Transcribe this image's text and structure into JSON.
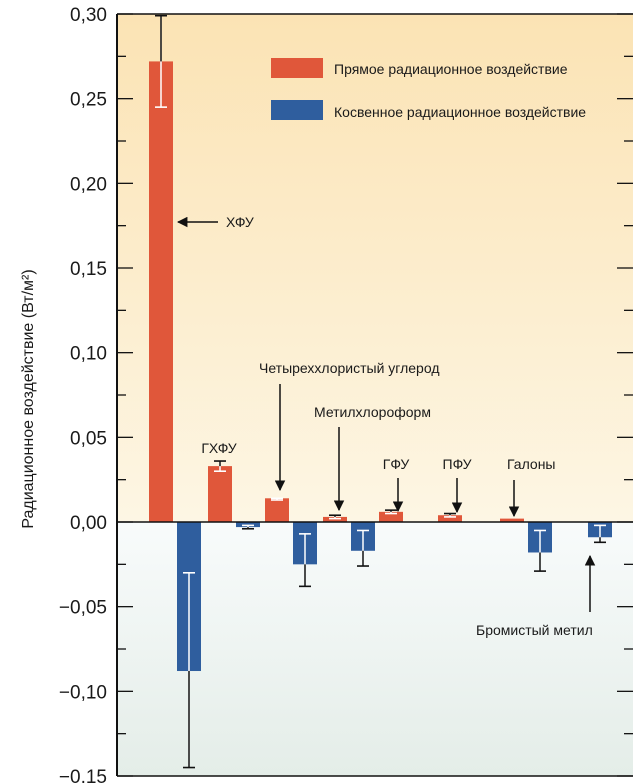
{
  "chart_data": {
    "type": "bar",
    "ylabel": "Радиационное воздействие (Вт/м²)",
    "ylim": [
      -0.15,
      0.3
    ],
    "yticks": [
      "0,30",
      "0,25",
      "0,20",
      "0,15",
      "0,10",
      "0,05",
      "0,00",
      "−0,05",
      "−0,10",
      "−0,15"
    ],
    "ytick_values": [
      0.3,
      0.25,
      0.2,
      0.15,
      0.1,
      0.05,
      0.0,
      -0.05,
      -0.1,
      -0.15
    ],
    "legend": {
      "position": "top-right",
      "entries": [
        "Прямое радиационное воздействие",
        "Косвенное радиационное воздействие"
      ]
    },
    "series": [
      {
        "key": "direct",
        "color": "#e0573a",
        "values": [
          0.272,
          0.033,
          0.014,
          0.003,
          0.006,
          0.004,
          0.002,
          null
        ],
        "errors": [
          [
            0.245,
            0.299
          ],
          [
            0.03,
            0.036
          ],
          [
            0.013,
            0.014
          ],
          [
            0.002,
            0.004
          ],
          [
            0.005,
            0.007
          ],
          [
            0.003,
            0.005
          ],
          null,
          null
        ]
      },
      {
        "key": "indirect",
        "color": "#2f5e9e",
        "values": [
          -0.088,
          -0.003,
          -0.025,
          -0.017,
          null,
          null,
          -0.018,
          -0.009
        ],
        "errors": [
          [
            -0.145,
            -0.03
          ],
          [
            -0.004,
            -0.002
          ],
          [
            -0.038,
            -0.007
          ],
          [
            -0.026,
            -0.005
          ],
          null,
          null,
          [
            -0.029,
            -0.005
          ],
          [
            -0.012,
            -0.002
          ]
        ]
      }
    ],
    "annotations": {
      "cfc": "ХФУ",
      "hcfc": "ГХФУ",
      "ccl4": "Четыреххлористый углерод",
      "methylchloroform": "Метилхлороформ",
      "hfc": "ГФУ",
      "pfc": "ПФУ",
      "halons": "Галоны",
      "methylbromide": "Бромистый метил"
    }
  }
}
